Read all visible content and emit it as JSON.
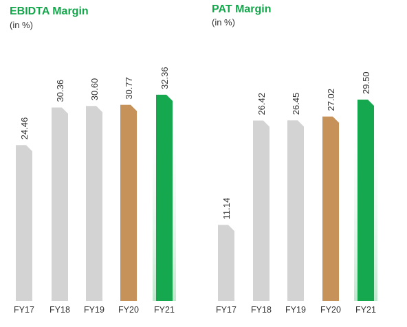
{
  "colors": {
    "title": "#12a64a",
    "bar_default": "#d3d3d3",
    "bar_fy20": "#c6925a",
    "bar_fy21": "#16a84e",
    "glow_fy21": "#bfe8cd"
  },
  "chart_data": [
    {
      "type": "bar",
      "title": "EBIDTA Margin",
      "subtitle": "(in %)",
      "categories": [
        "FY17",
        "FY18",
        "FY19",
        "FY20",
        "FY21"
      ],
      "values": [
        24.46,
        30.36,
        30.6,
        30.77,
        32.36
      ],
      "labels": [
        "24.46",
        "30.36",
        "30.60",
        "30.77",
        "32.36"
      ],
      "ylim": [
        0,
        33
      ],
      "grid": false,
      "legend": "none"
    },
    {
      "type": "bar",
      "title": "PAT Margin",
      "subtitle": "(in %)",
      "categories": [
        "FY17",
        "FY18",
        "FY19",
        "FY20",
        "FY21"
      ],
      "values": [
        11.14,
        26.42,
        26.45,
        27.02,
        29.5
      ],
      "labels": [
        "11.14",
        "26.42",
        "26.45",
        "27.02",
        "29.50"
      ],
      "ylim": [
        0,
        30
      ],
      "grid": false,
      "legend": "none"
    }
  ]
}
